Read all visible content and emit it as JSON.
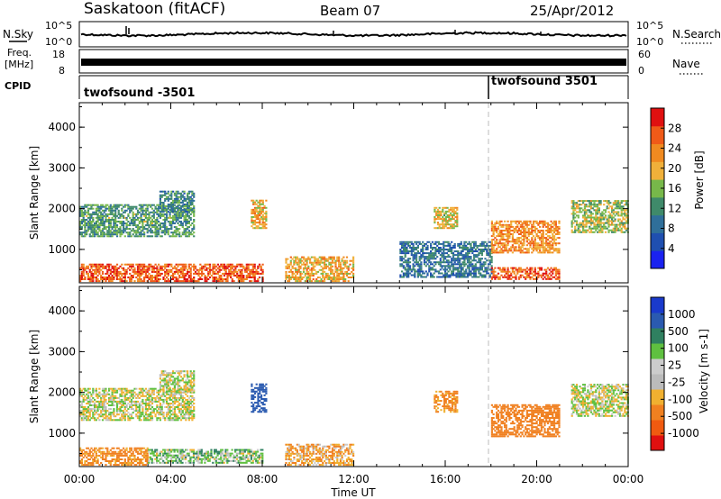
{
  "header": {
    "station": "Saskatoon (fitACF)",
    "beam": "Beam 07",
    "date": "25/Apr/2012"
  },
  "nsky_panel": {
    "label": "N.Sky",
    "right_label": "N.Search",
    "ticks_left": [
      "10^5",
      "10^0"
    ],
    "ticks_right": [
      "10^5",
      "10^0"
    ]
  },
  "freq_panel": {
    "label_line1": "Freq.",
    "label_line2": "[MHz]",
    "right_label": "Nave",
    "ticks_left": [
      "18",
      "8"
    ],
    "ticks_right": [
      "60",
      "0"
    ]
  },
  "cpid_panel": {
    "label": "CPID",
    "segments": [
      {
        "name": "twofsound -3501",
        "start_hour": 0
      },
      {
        "name": "twofsound 3501",
        "start_hour": 18
      }
    ]
  },
  "colors": {
    "power_scale": [
      "#1a22f0",
      "#1f4fb0",
      "#2f6f9a",
      "#3f8a6a",
      "#77b84a",
      "#f0b03a",
      "#f08a20",
      "#f05a18",
      "#e01010"
    ],
    "velocity_scale": [
      "#1a3acc",
      "#2a5ab0",
      "#2f8060",
      "#5fc040",
      "#cccccc",
      "#bbbbbb",
      "#f0b030",
      "#f08020",
      "#f05a10",
      "#e01010"
    ]
  },
  "chart_data": [
    {
      "type": "heatmap",
      "title": "Power",
      "xlabel": "Time UT",
      "ylabel": "Slant Range [km]",
      "x_ticks": [
        "00:00",
        "04:00",
        "08:00",
        "12:00",
        "16:00",
        "20:00",
        "00:00"
      ],
      "y_ticks": [
        "1000",
        "2000",
        "3000",
        "4000"
      ],
      "xlim": [
        0,
        24
      ],
      "ylim": [
        180,
        4600
      ],
      "colorbar_label": "Power [dB]",
      "colorbar_ticks": [
        "4",
        "8",
        "12",
        "16",
        "20",
        "24",
        "28"
      ],
      "echo_regions": [
        {
          "t": [
            0,
            8
          ],
          "r": [
            200,
            650
          ],
          "dB": 26
        },
        {
          "t": [
            0,
            5
          ],
          "r": [
            1300,
            2100
          ],
          "dB": 12
        },
        {
          "t": [
            3.5,
            5
          ],
          "r": [
            1900,
            2400
          ],
          "dB": 10
        },
        {
          "t": [
            7.5,
            8.2
          ],
          "r": [
            1500,
            2200
          ],
          "dB": 20
        },
        {
          "t": [
            9,
            12
          ],
          "r": [
            200,
            800
          ],
          "dB": 20
        },
        {
          "t": [
            14,
            18
          ],
          "r": [
            300,
            1200
          ],
          "dB": 8
        },
        {
          "t": [
            15.5,
            16.5
          ],
          "r": [
            1500,
            2000
          ],
          "dB": 18
        },
        {
          "t": [
            18,
            21
          ],
          "r": [
            250,
            550
          ],
          "dB": 26
        },
        {
          "t": [
            18,
            21
          ],
          "r": [
            900,
            1700
          ],
          "dB": 22
        },
        {
          "t": [
            21.5,
            24
          ],
          "r": [
            1400,
            2200
          ],
          "dB": 16
        }
      ]
    },
    {
      "type": "heatmap",
      "title": "Velocity",
      "xlabel": "Time UT",
      "ylabel": "Slant Range [km]",
      "x_ticks": [
        "00:00",
        "04:00",
        "08:00",
        "12:00",
        "16:00",
        "20:00",
        "00:00"
      ],
      "y_ticks": [
        "1000",
        "2000",
        "3000",
        "4000"
      ],
      "xlim": [
        0,
        24
      ],
      "ylim": [
        180,
        4600
      ],
      "colorbar_label": "Velocity [m s-1]",
      "colorbar_ticks": [
        "1000",
        "500",
        "100",
        "25",
        "-25",
        "-100",
        "-500",
        "-1000"
      ],
      "echo_regions": [
        {
          "t": [
            0,
            3
          ],
          "r": [
            200,
            650
          ],
          "v": -150
        },
        {
          "t": [
            3,
            8
          ],
          "r": [
            250,
            600
          ],
          "v": 50
        },
        {
          "t": [
            0,
            5
          ],
          "r": [
            1300,
            2100
          ],
          "v": 0
        },
        {
          "t": [
            3.5,
            5
          ],
          "r": [
            2000,
            2500
          ],
          "v": 0
        },
        {
          "t": [
            7.5,
            8.2
          ],
          "r": [
            1500,
            2200
          ],
          "v": 600
        },
        {
          "t": [
            9,
            12
          ],
          "r": [
            200,
            700
          ],
          "v": -80
        },
        {
          "t": [
            15.5,
            16.5
          ],
          "r": [
            1500,
            2000
          ],
          "v": -150
        },
        {
          "t": [
            18,
            21
          ],
          "r": [
            900,
            1700
          ],
          "v": -400
        },
        {
          "t": [
            21.5,
            24
          ],
          "r": [
            1400,
            2200
          ],
          "v": 0
        }
      ]
    }
  ]
}
